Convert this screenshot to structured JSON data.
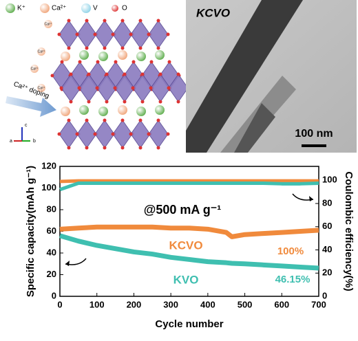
{
  "structure": {
    "legend": [
      "K⁺",
      "Ca²⁺",
      "V",
      "O"
    ],
    "ion_labels": [
      "Ca²⁺",
      "Ca²⁺",
      "Ca²⁺",
      "Ca²⁺"
    ],
    "doping_label": "Ca²⁺ doping",
    "axes": [
      "c",
      "a",
      "b"
    ]
  },
  "tem": {
    "title": "KCVO",
    "scale_bar": "100 nm"
  },
  "chart_data": {
    "type": "line",
    "x_label": "Cycle number",
    "y_label": "Specific capacity(mAh g⁻¹)",
    "y2_label": "Coulombic efficiency(%)",
    "annotations": [
      "@500 mA g⁻¹",
      "KCVO",
      "100%",
      "KVO",
      "46.15%"
    ],
    "x": [
      0,
      50,
      100,
      150,
      200,
      250,
      300,
      350,
      400,
      450,
      465,
      500,
      550,
      600,
      650,
      700
    ],
    "series": [
      {
        "name": "KCVO capacity",
        "color": "#f08a3c",
        "values": [
          62,
          63,
          64,
          64,
          64,
          64,
          63,
          63,
          62,
          59,
          55,
          57,
          58,
          59,
          60,
          61
        ]
      },
      {
        "name": "KVO capacity",
        "color": "#3fbfb0",
        "values": [
          56,
          51,
          47,
          44,
          41,
          39,
          36,
          34,
          32,
          31,
          30.5,
          30,
          29,
          28,
          27,
          26
        ]
      },
      {
        "name": "KCVO efficiency",
        "color": "#f08a3c",
        "axis": "y2",
        "values": [
          99,
          99.5,
          99.5,
          99.5,
          99.5,
          99.5,
          99.5,
          99.5,
          99.5,
          99.5,
          99.5,
          99.5,
          99.5,
          99.5,
          99.5,
          99.5
        ]
      },
      {
        "name": "KVO efficiency",
        "color": "#3fbfb0",
        "axis": "y2",
        "values": [
          92,
          97.5,
          97.5,
          97.5,
          97.5,
          97.5,
          97.5,
          97.5,
          97.5,
          97.5,
          97.5,
          97.5,
          97.5,
          97,
          97,
          97.5
        ]
      }
    ],
    "xlim": [
      0,
      700
    ],
    "xticks": [
      0,
      100,
      200,
      300,
      400,
      500,
      600,
      700
    ],
    "ylim": [
      0,
      120
    ],
    "yticks": [
      0,
      20,
      40,
      60,
      80,
      100,
      120
    ],
    "y2lim": [
      0,
      112
    ],
    "y2ticks": [
      0,
      20,
      40,
      60,
      80,
      100
    ]
  }
}
